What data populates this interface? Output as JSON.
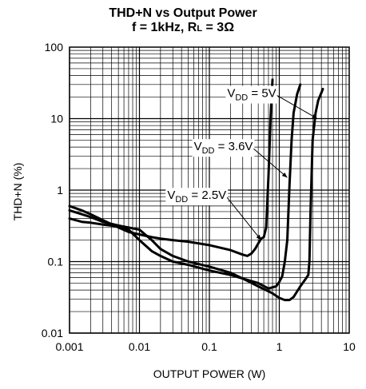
{
  "title": {
    "line1": "THD+N vs Output Power",
    "line2_prefix": "f = 1kHz, R",
    "line2_sub": "L",
    "line2_suffix": " = 3Ω"
  },
  "chart_data": {
    "type": "line",
    "title": "THD+N vs Output Power",
    "subtitle": "f = 1kHz, RL = 3Ω",
    "xlabel": "OUTPUT POWER (W)",
    "ylabel": "THD+N (%)",
    "xscale": "log",
    "yscale": "log",
    "xlim": [
      0.001,
      10
    ],
    "ylim": [
      0.01,
      100
    ],
    "grid": true,
    "x_ticks": [
      "0.001",
      "0.01",
      "0.1",
      "1",
      "10"
    ],
    "y_ticks": [
      "0.01",
      "0.1",
      "1",
      "10",
      "100"
    ],
    "series": [
      {
        "name": "VDD = 2.5V",
        "label_main": "V",
        "label_sub": "DD",
        "label_rest": " = 2.5V",
        "x": [
          0.001,
          0.0015,
          0.002,
          0.003,
          0.005,
          0.007,
          0.01,
          0.015,
          0.02,
          0.03,
          0.05,
          0.1,
          0.2,
          0.3,
          0.35,
          0.4,
          0.45,
          0.5,
          0.55,
          0.6,
          0.65,
          0.7,
          0.75,
          0.8
        ],
        "y": [
          0.6,
          0.52,
          0.46,
          0.38,
          0.3,
          0.26,
          0.24,
          0.22,
          0.21,
          0.2,
          0.19,
          0.17,
          0.145,
          0.125,
          0.12,
          0.13,
          0.15,
          0.18,
          0.21,
          0.22,
          0.3,
          1.5,
          10,
          35
        ]
      },
      {
        "name": "VDD = 3.6V",
        "label_main": "V",
        "label_sub": "DD",
        "label_rest": " = 3.6V",
        "x": [
          0.001,
          0.0015,
          0.002,
          0.003,
          0.005,
          0.007,
          0.01,
          0.015,
          0.02,
          0.03,
          0.05,
          0.1,
          0.2,
          0.3,
          0.5,
          0.7,
          0.9,
          1.0,
          1.1,
          1.2,
          1.3,
          1.4,
          1.5,
          1.6,
          1.8,
          2.0
        ],
        "y": [
          0.4,
          0.36,
          0.35,
          0.33,
          0.31,
          0.28,
          0.2,
          0.14,
          0.12,
          0.1,
          0.09,
          0.075,
          0.065,
          0.058,
          0.05,
          0.042,
          0.045,
          0.052,
          0.062,
          0.1,
          0.2,
          1.2,
          5,
          12,
          22,
          30
        ]
      },
      {
        "name": "VDD = 5V",
        "label_main": "V",
        "label_sub": "DD",
        "label_rest": " = 5V",
        "x": [
          0.001,
          0.0015,
          0.002,
          0.003,
          0.005,
          0.007,
          0.01,
          0.015,
          0.02,
          0.03,
          0.05,
          0.1,
          0.2,
          0.3,
          0.5,
          0.8,
          1.0,
          1.2,
          1.4,
          1.6,
          2.0,
          2.4,
          2.6,
          2.7,
          2.8,
          3.0,
          3.3,
          3.6,
          4.0,
          4.2
        ],
        "y": [
          0.52,
          0.46,
          0.42,
          0.36,
          0.32,
          0.3,
          0.28,
          0.2,
          0.15,
          0.12,
          0.1,
          0.085,
          0.07,
          0.058,
          0.045,
          0.036,
          0.031,
          0.029,
          0.029,
          0.032,
          0.045,
          0.058,
          0.065,
          0.1,
          0.5,
          5,
          12,
          18,
          23,
          26
        ]
      }
    ],
    "annotations": [
      {
        "series": "VDD = 5V",
        "label_at": [
          0.18,
          20
        ],
        "arrow_to": [
          3.5,
          10
        ]
      },
      {
        "series": "VDD = 3.6V",
        "label_at": [
          0.06,
          3.6
        ],
        "arrow_to": [
          1.3,
          1.5
        ]
      },
      {
        "series": "VDD = 2.5V",
        "label_at": [
          0.025,
          0.75
        ],
        "arrow_to": [
          0.55,
          0.2
        ]
      }
    ]
  }
}
